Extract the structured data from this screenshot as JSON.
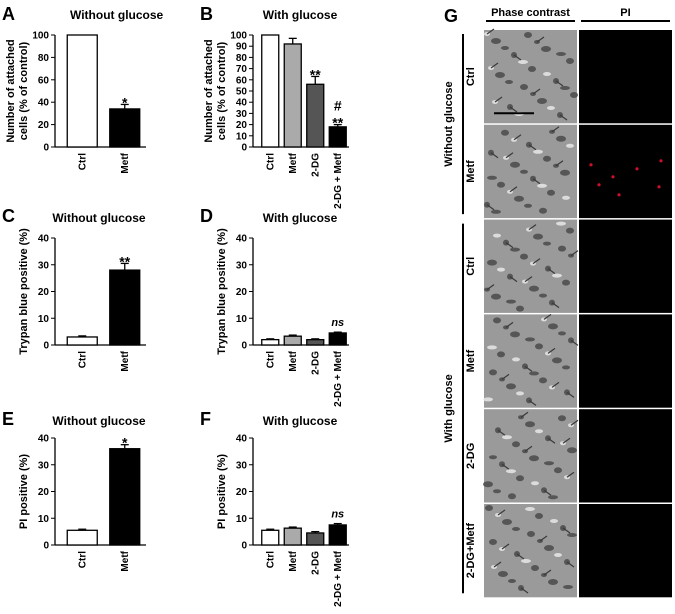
{
  "chart_data": [
    {
      "id": "A",
      "type": "bar",
      "title": "Without glucose",
      "ylabel": [
        "Number of attached",
        "cells (% of control)"
      ],
      "ylim": [
        0,
        100
      ],
      "yticks": [
        0,
        20,
        40,
        60,
        80,
        100
      ],
      "categories": [
        "Ctrl",
        "Metf"
      ],
      "values": [
        100,
        34
      ],
      "errors": [
        0,
        4
      ],
      "annotations": [
        "",
        "*"
      ],
      "ns": [
        "",
        ""
      ],
      "fills": [
        "#ffffff",
        "#000000"
      ]
    },
    {
      "id": "B",
      "type": "bar",
      "title": "With glucose",
      "ylabel": [
        "Number of attached",
        "cells (% of control)"
      ],
      "ylim": [
        0,
        100
      ],
      "yticks": [
        0,
        10,
        20,
        30,
        40,
        50,
        60,
        70,
        80,
        90,
        100
      ],
      "categories": [
        "Ctrl",
        "Metf",
        "2-DG",
        "2-DG + Metf"
      ],
      "values": [
        100,
        92,
        56,
        18
      ],
      "errors": [
        0,
        5,
        7,
        2
      ],
      "annotations": [
        "",
        "",
        "**",
        "#\n**"
      ],
      "ns": [
        "",
        "",
        "",
        ""
      ],
      "fills": [
        "#ffffff",
        "#aaaaaa",
        "#555555",
        "#000000"
      ]
    },
    {
      "id": "C",
      "type": "bar",
      "title": "Without glucose",
      "ylabel": [
        "Trypan blue positive (%)"
      ],
      "ylim": [
        0,
        40
      ],
      "yticks": [
        0,
        10,
        20,
        30,
        40
      ],
      "categories": [
        "Ctrl",
        "Metf"
      ],
      "values": [
        3,
        28
      ],
      "errors": [
        0.4,
        2.5
      ],
      "annotations": [
        "",
        "**"
      ],
      "ns": [
        "",
        ""
      ],
      "fills": [
        "#ffffff",
        "#000000"
      ]
    },
    {
      "id": "D",
      "type": "bar",
      "title": "With glucose",
      "ylabel": [
        "Trypan blue positive (%)"
      ],
      "ylim": [
        0,
        40
      ],
      "yticks": [
        0,
        10,
        20,
        30,
        40
      ],
      "categories": [
        "Ctrl",
        "Metf",
        "2-DG",
        "2-DG + Metf"
      ],
      "values": [
        2,
        3.3,
        2,
        4.5
      ],
      "errors": [
        0.3,
        0.4,
        0.3,
        0.3
      ],
      "annotations": [
        "",
        "",
        "",
        ""
      ],
      "ns": [
        "",
        "",
        "",
        "ns"
      ],
      "fills": [
        "#ffffff",
        "#aaaaaa",
        "#555555",
        "#000000"
      ]
    },
    {
      "id": "E",
      "type": "bar",
      "title": "Without glucose",
      "ylabel": [
        "PI positive (%)"
      ],
      "ylim": [
        0,
        40
      ],
      "yticks": [
        0,
        10,
        20,
        30,
        40
      ],
      "categories": [
        "Ctrl",
        "Metf"
      ],
      "values": [
        5.5,
        36
      ],
      "errors": [
        0.4,
        1.5
      ],
      "annotations": [
        "",
        "*"
      ],
      "ns": [
        "",
        ""
      ],
      "fills": [
        "#ffffff",
        "#000000"
      ]
    },
    {
      "id": "F",
      "type": "bar",
      "title": "With glucose",
      "ylabel": [
        "PI positive (%)"
      ],
      "ylim": [
        0,
        40
      ],
      "yticks": [
        0,
        10,
        20,
        30,
        40
      ],
      "categories": [
        "Ctrl",
        "Metf",
        "2-DG",
        "2-DG + Metf"
      ],
      "values": [
        5.5,
        6.3,
        4.5,
        7.5
      ],
      "errors": [
        0.4,
        0.4,
        0.5,
        0.5
      ],
      "annotations": [
        "",
        "",
        "",
        ""
      ],
      "ns": [
        "",
        "",
        "",
        "ns"
      ],
      "fills": [
        "#ffffff",
        "#aaaaaa",
        "#555555",
        "#000000"
      ]
    }
  ],
  "panel_g": {
    "letter": "G",
    "col_headers": [
      "Phase contrast",
      "PI"
    ],
    "groups": [
      {
        "label": "Without glucose",
        "rows": [
          "Ctrl",
          "Metf"
        ]
      },
      {
        "label": "With glucose",
        "rows": [
          "Ctrl",
          "Metf",
          "2-DG",
          "2-DG+Metf"
        ]
      }
    ],
    "phase_color": "#9a9a9a",
    "pi_color": "#000000",
    "pi_dot_color": "#d0102a"
  }
}
